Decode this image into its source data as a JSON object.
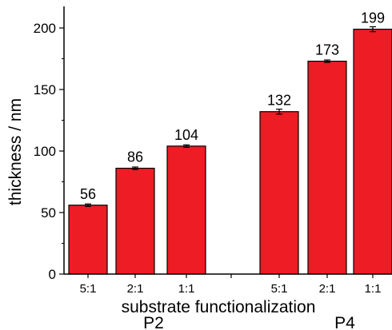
{
  "chart_data": {
    "type": "bar",
    "title": "",
    "xlabel": "substrate functionalization",
    "ylabel": "thickness / nm",
    "ylim": [
      0,
      200
    ],
    "yticks": [
      0,
      50,
      100,
      150,
      200
    ],
    "grid": false,
    "legend": "none",
    "bar_color": "#ee1c25",
    "groups": [
      {
        "label": "P2",
        "categories": [
          "5:1",
          "2:1",
          "1:1"
        ],
        "values": [
          56,
          86,
          104
        ],
        "errors": [
          1,
          1,
          1
        ],
        "data_labels": [
          "56",
          "86",
          "104"
        ]
      },
      {
        "label": "P4",
        "categories": [
          "5:1",
          "2:1",
          "1:1"
        ],
        "values": [
          132,
          173,
          199
        ],
        "errors": [
          2,
          1,
          2
        ],
        "data_labels": [
          "132",
          "173",
          "199"
        ]
      }
    ]
  }
}
